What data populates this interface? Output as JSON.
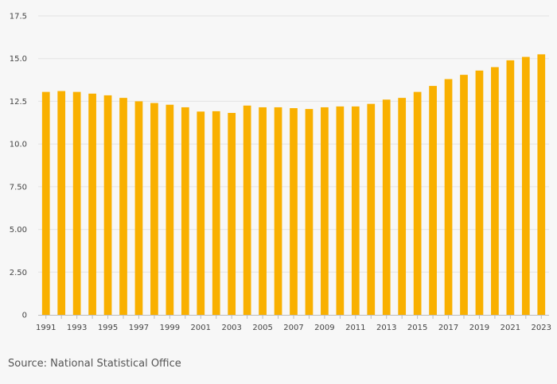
{
  "chart_data": {
    "type": "bar",
    "title": "",
    "xlabel": "",
    "ylabel": "",
    "categories": [
      "1991",
      "1992",
      "1993",
      "1994",
      "1995",
      "1996",
      "1997",
      "1998",
      "1999",
      "2000",
      "2001",
      "2002",
      "2003",
      "2004",
      "2005",
      "2006",
      "2007",
      "2008",
      "2009",
      "2010",
      "2011",
      "2012",
      "2013",
      "2014",
      "2015",
      "2016",
      "2017",
      "2018",
      "2019",
      "2020",
      "2021",
      "2022",
      "2023"
    ],
    "values": [
      13.05,
      13.1,
      13.05,
      12.95,
      12.85,
      12.7,
      12.5,
      12.4,
      12.3,
      12.15,
      11.9,
      11.92,
      11.82,
      12.25,
      12.15,
      12.15,
      12.1,
      12.05,
      12.15,
      12.2,
      12.2,
      12.35,
      12.6,
      12.7,
      13.05,
      13.4,
      13.8,
      14.05,
      14.3,
      14.5,
      14.9,
      15.1,
      15.25
    ],
    "x_tick_labels": [
      "1991",
      "1993",
      "1995",
      "1997",
      "1999",
      "2001",
      "2003",
      "2005",
      "2007",
      "2009",
      "2011",
      "2013",
      "2015",
      "2017",
      "2019",
      "2021",
      "2023"
    ],
    "y_ticks": [
      0,
      2.5,
      5,
      7.5,
      10,
      12.5,
      15,
      17.5
    ],
    "y_tick_labels": [
      "0",
      "2.50",
      "5.00",
      "7.50",
      "10.0",
      "12.5",
      "15.0",
      "17.5"
    ],
    "ylim": [
      0,
      17.5
    ],
    "grid": true,
    "legend": "none",
    "bar_color": "#f9b000"
  },
  "source": "Source: National Statistical Office"
}
